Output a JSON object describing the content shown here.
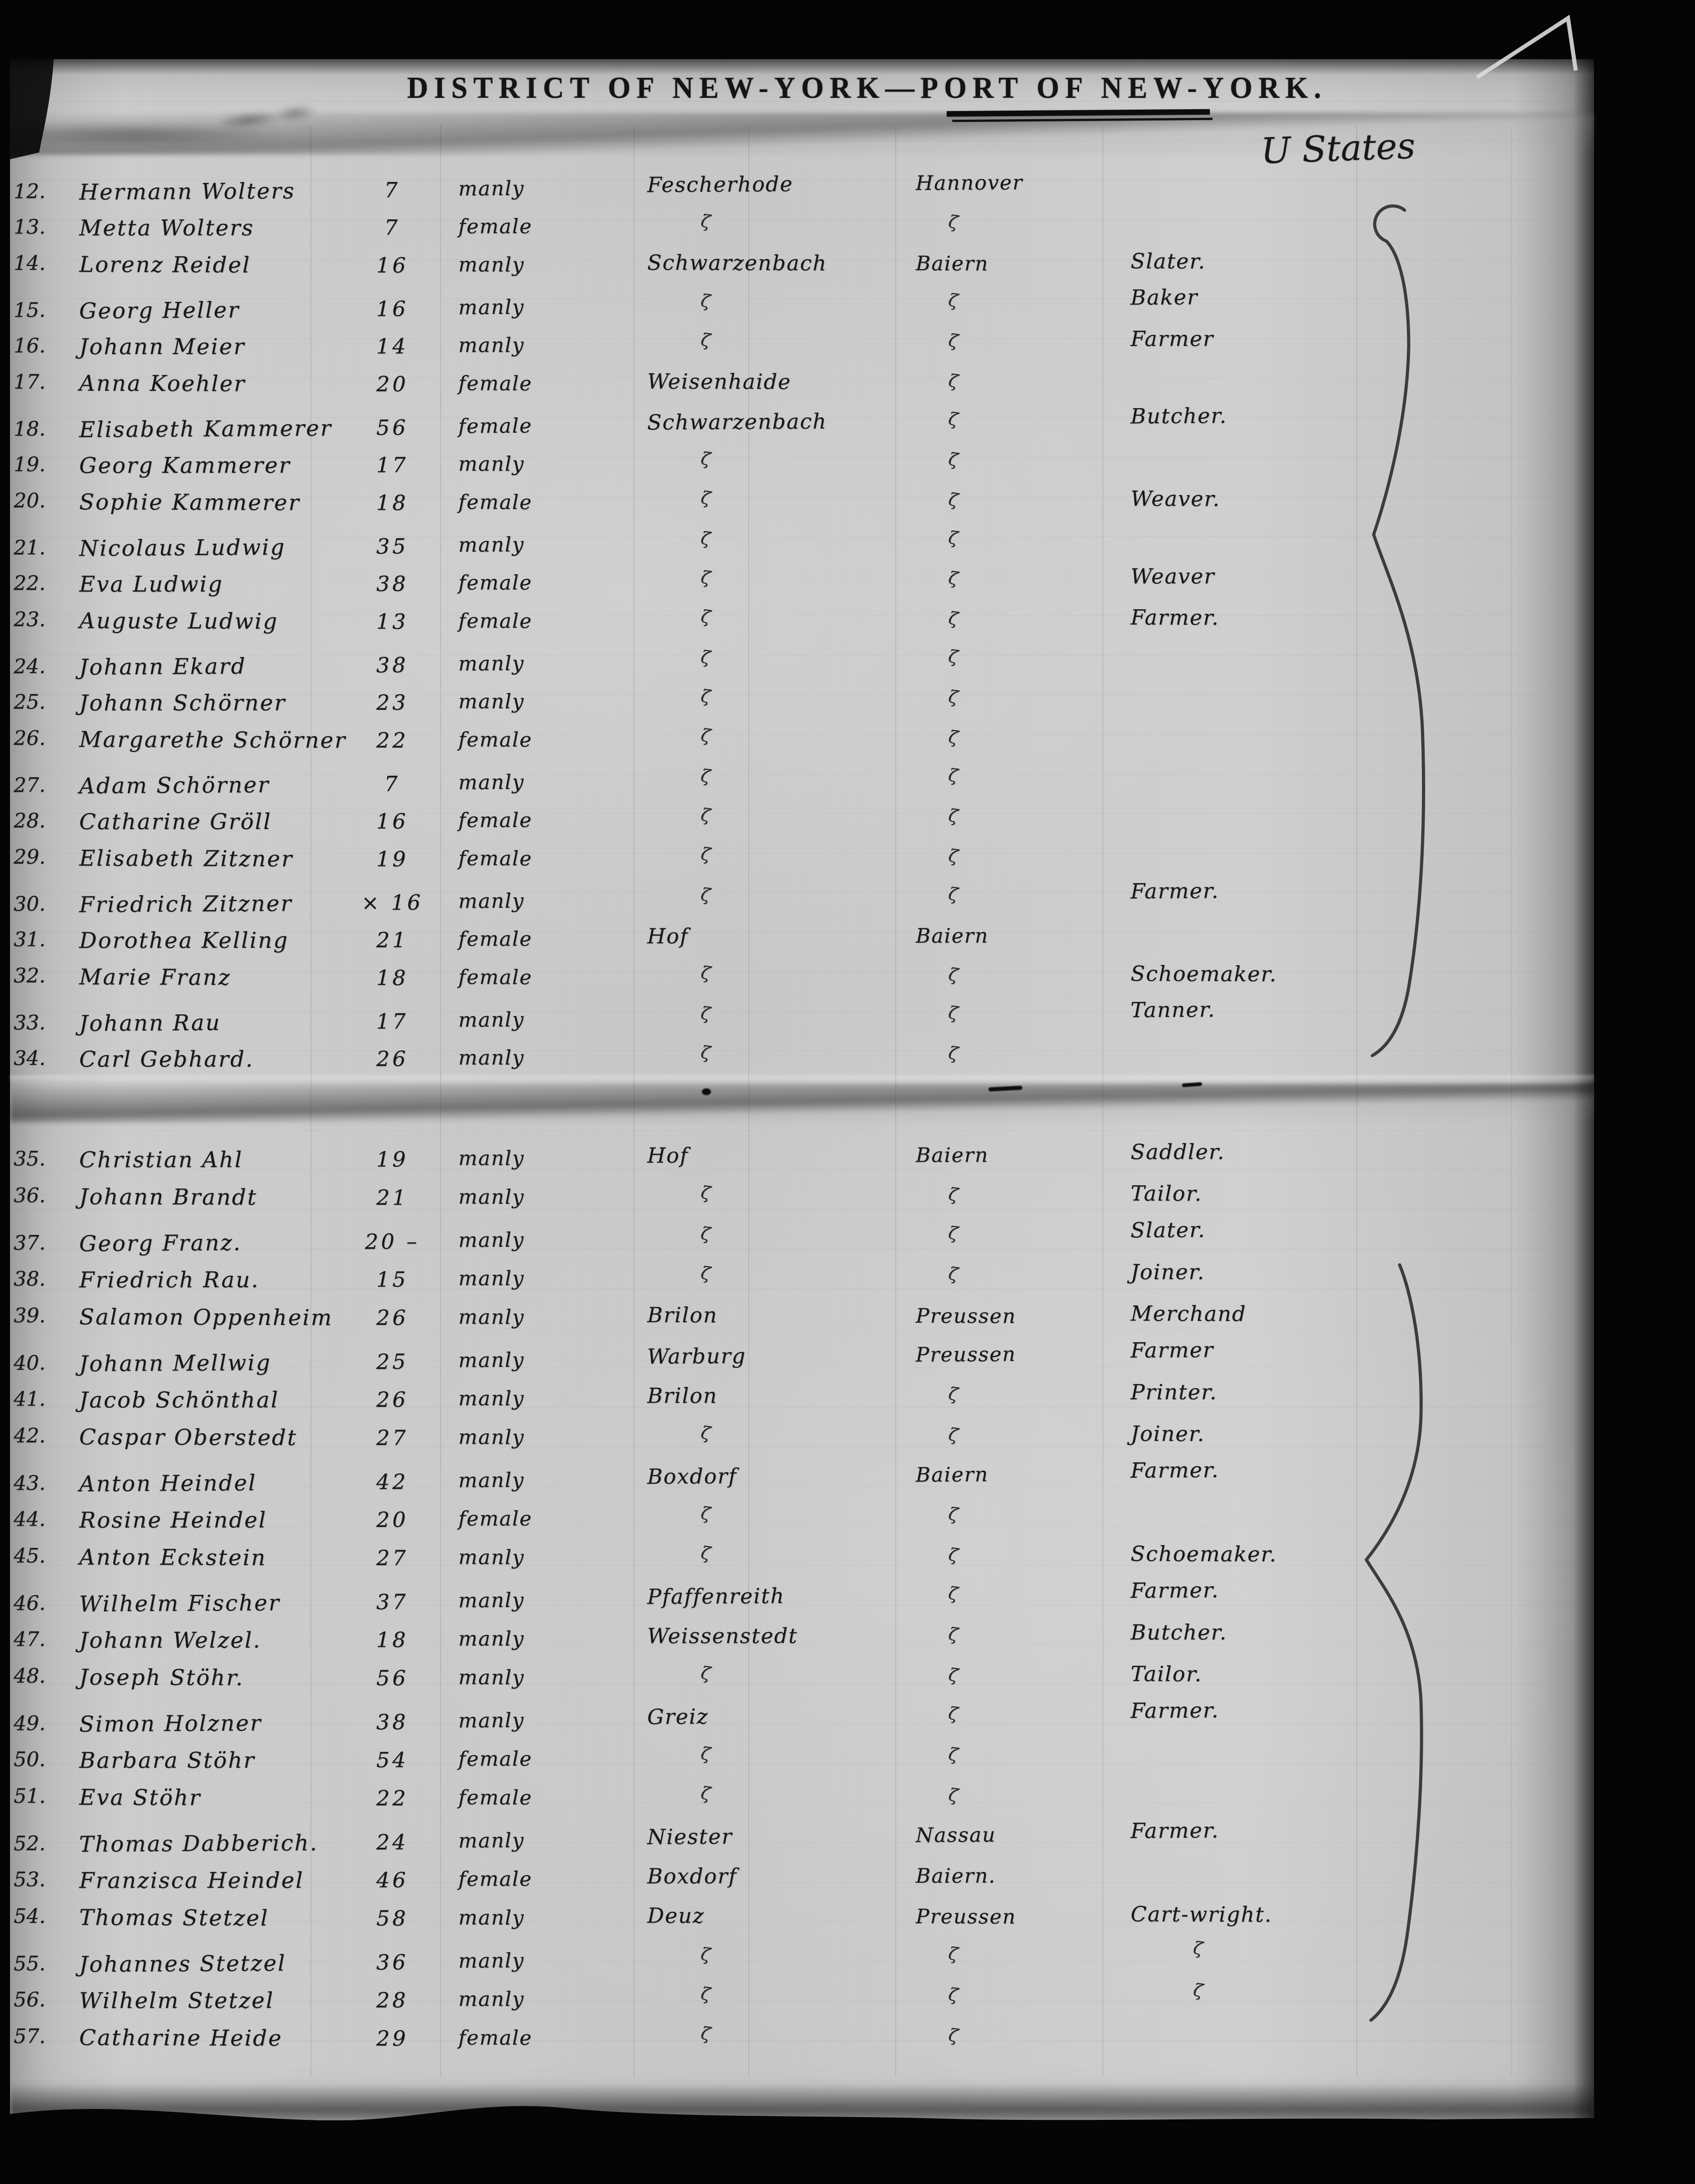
{
  "header": {
    "title": "DISTRICT OF NEW-YORK—PORT OF NEW-YORK.",
    "annotation": "U States"
  },
  "table": {
    "ditto_mark": "ζ",
    "sections": [
      {
        "rows": [
          {
            "no": "12.",
            "name": "Hermann Wolters",
            "age": "7",
            "sex": "manly",
            "place": "Fescherhode",
            "origin": "Hannover",
            "occupation": ""
          },
          {
            "no": "13.",
            "name": "Metta Wolters",
            "age": "7",
            "sex": "female",
            "place": "ζ",
            "origin": "ζ",
            "occupation": ""
          },
          {
            "no": "14.",
            "name": "Lorenz Reidel",
            "age": "16",
            "sex": "manly",
            "place": "Schwarzenbach",
            "origin": "Baiern",
            "occupation": "Slater."
          },
          {
            "no": "15.",
            "name": "Georg Heller",
            "age": "16",
            "sex": "manly",
            "place": "ζ",
            "origin": "ζ",
            "occupation": "Baker"
          },
          {
            "no": "16.",
            "name": "Johann Meier",
            "age": "14",
            "sex": "manly",
            "place": "ζ",
            "origin": "ζ",
            "occupation": "Farmer"
          },
          {
            "no": "17.",
            "name": "Anna Koehler",
            "age": "20",
            "sex": "female",
            "place": "Weisenhaide",
            "origin": "ζ",
            "occupation": ""
          },
          {
            "no": "18.",
            "name": "Elisabeth Kammerer",
            "age": "56",
            "sex": "female",
            "place": "Schwarzenbach",
            "origin": "ζ",
            "occupation": "Butcher."
          },
          {
            "no": "19.",
            "name": "Georg Kammerer",
            "age": "17",
            "sex": "manly",
            "place": "ζ",
            "origin": "ζ",
            "occupation": ""
          },
          {
            "no": "20.",
            "name": "Sophie Kammerer",
            "age": "18",
            "sex": "female",
            "place": "ζ",
            "origin": "ζ",
            "occupation": "Weaver."
          },
          {
            "no": "21.",
            "name": "Nicolaus Ludwig",
            "age": "35",
            "sex": "manly",
            "place": "ζ",
            "origin": "ζ",
            "occupation": ""
          },
          {
            "no": "22.",
            "name": "Eva Ludwig",
            "age": "38",
            "sex": "female",
            "place": "ζ",
            "origin": "ζ",
            "occupation": "Weaver"
          },
          {
            "no": "23.",
            "name": "Auguste Ludwig",
            "age": "13",
            "sex": "female",
            "place": "ζ",
            "origin": "ζ",
            "occupation": "Farmer."
          },
          {
            "no": "24.",
            "name": "Johann Ekard",
            "age": "38",
            "sex": "manly",
            "place": "ζ",
            "origin": "ζ",
            "occupation": ""
          },
          {
            "no": "25.",
            "name": "Johann Schörner",
            "age": "23",
            "sex": "manly",
            "place": "ζ",
            "origin": "ζ",
            "occupation": ""
          },
          {
            "no": "26.",
            "name": "Margarethe Schörner",
            "age": "22",
            "sex": "female",
            "place": "ζ",
            "origin": "ζ",
            "occupation": ""
          },
          {
            "no": "27.",
            "name": "Adam Schörner",
            "age": "7",
            "sex": "manly",
            "place": "ζ",
            "origin": "ζ",
            "occupation": ""
          },
          {
            "no": "28.",
            "name": "Catharine Gröll",
            "age": "16",
            "sex": "female",
            "place": "ζ",
            "origin": "ζ",
            "occupation": ""
          },
          {
            "no": "29.",
            "name": "Elisabeth Zitzner",
            "age": "19",
            "sex": "female",
            "place": "ζ",
            "origin": "ζ",
            "occupation": ""
          },
          {
            "no": "30.",
            "name": "Friedrich Zitzner",
            "age": "× 16",
            "sex": "manly",
            "place": "ζ",
            "origin": "ζ",
            "occupation": "Farmer."
          },
          {
            "no": "31.",
            "name": "Dorothea Kelling",
            "age": "21",
            "sex": "female",
            "place": "Hof",
            "origin": "Baiern",
            "occupation": ""
          },
          {
            "no": "32.",
            "name": "Marie Franz",
            "age": "18",
            "sex": "female",
            "place": "ζ",
            "origin": "ζ",
            "occupation": "Schoemaker."
          },
          {
            "no": "33.",
            "name": "Johann Rau",
            "age": "17",
            "sex": "manly",
            "place": "ζ",
            "origin": "ζ",
            "occupation": "Tanner."
          },
          {
            "no": "34.",
            "name": "Carl Gebhard.",
            "age": "26",
            "sex": "manly",
            "place": "ζ",
            "origin": "ζ",
            "occupation": ""
          }
        ]
      },
      {
        "rows": [
          {
            "no": "35.",
            "name": "Christian Ahl",
            "age": "19",
            "sex": "manly",
            "place": "Hof",
            "origin": "Baiern",
            "occupation": "Saddler."
          },
          {
            "no": "36.",
            "name": "Johann Brandt",
            "age": "21",
            "sex": "manly",
            "place": "ζ",
            "origin": "ζ",
            "occupation": "Tailor."
          },
          {
            "no": "37.",
            "name": "Georg Franz.",
            "age": "20 –",
            "sex": "manly",
            "place": "ζ",
            "origin": "ζ",
            "occupation": "Slater."
          },
          {
            "no": "38.",
            "name": "Friedrich Rau.",
            "age": "15",
            "sex": "manly",
            "place": "ζ",
            "origin": "ζ",
            "occupation": "Joiner."
          },
          {
            "no": "39.",
            "name": "Salamon Oppenheim",
            "age": "26",
            "sex": "manly",
            "place": "Brilon",
            "origin": "Preussen",
            "occupation": "Merchand"
          },
          {
            "no": "40.",
            "name": "Johann Mellwig",
            "age": "25",
            "sex": "manly",
            "place": "Warburg",
            "origin": "Preussen",
            "occupation": "Farmer"
          },
          {
            "no": "41.",
            "name": "Jacob Schönthal",
            "age": "26",
            "sex": "manly",
            "place": "Brilon",
            "origin": "ζ",
            "occupation": "Printer."
          },
          {
            "no": "42.",
            "name": "Caspar Oberstedt",
            "age": "27",
            "sex": "manly",
            "place": "ζ",
            "origin": "ζ",
            "occupation": "Joiner."
          },
          {
            "no": "43.",
            "name": "Anton Heindel",
            "age": "42",
            "sex": "manly",
            "place": "Boxdorf",
            "origin": "Baiern",
            "occupation": "Farmer."
          },
          {
            "no": "44.",
            "name": "Rosine Heindel",
            "age": "20",
            "sex": "female",
            "place": "ζ",
            "origin": "ζ",
            "occupation": ""
          },
          {
            "no": "45.",
            "name": "Anton Eckstein",
            "age": "27",
            "sex": "manly",
            "place": "ζ",
            "origin": "ζ",
            "occupation": "Schoemaker."
          },
          {
            "no": "46.",
            "name": "Wilhelm Fischer",
            "age": "37",
            "sex": "manly",
            "place": "Pfaffenreith",
            "origin": "ζ",
            "occupation": "Farmer."
          },
          {
            "no": "47.",
            "name": "Johann Welzel.",
            "age": "18",
            "sex": "manly",
            "place": "Weissenstedt",
            "origin": "ζ",
            "occupation": "Butcher."
          },
          {
            "no": "48.",
            "name": "Joseph Stöhr.",
            "age": "56",
            "sex": "manly",
            "place": "ζ",
            "origin": "ζ",
            "occupation": "Tailor."
          },
          {
            "no": "49.",
            "name": "Simon Holzner",
            "age": "38",
            "sex": "manly",
            "place": "Greiz",
            "origin": "ζ",
            "occupation": "Farmer."
          },
          {
            "no": "50.",
            "name": "Barbara Stöhr",
            "age": "54",
            "sex": "female",
            "place": "ζ",
            "origin": "ζ",
            "occupation": ""
          },
          {
            "no": "51.",
            "name": "Eva Stöhr",
            "age": "22",
            "sex": "female",
            "place": "ζ",
            "origin": "ζ",
            "occupation": ""
          },
          {
            "no": "52.",
            "name": "Thomas Dabberich.",
            "age": "24",
            "sex": "manly",
            "place": "Niester",
            "origin": "Nassau",
            "occupation": "Farmer."
          },
          {
            "no": "53.",
            "name": "Franzisca Heindel",
            "age": "46",
            "sex": "female",
            "place": "Boxdorf",
            "origin": "Baiern.",
            "occupation": ""
          },
          {
            "no": "54.",
            "name": "Thomas Stetzel",
            "age": "58",
            "sex": "manly",
            "place": "Deuz",
            "origin": "Preussen",
            "occupation": "Cart-wright."
          },
          {
            "no": "55.",
            "name": "Johannes Stetzel",
            "age": "36",
            "sex": "manly",
            "place": "ζ",
            "origin": "ζ",
            "occupation": "ζ"
          },
          {
            "no": "56.",
            "name": "Wilhelm Stetzel",
            "age": "28",
            "sex": "manly",
            "place": "ζ",
            "origin": "ζ",
            "occupation": "ζ"
          },
          {
            "no": "57.",
            "name": "Catharine Heide",
            "age": "29",
            "sex": "female",
            "place": "ζ",
            "origin": "ζ",
            "occupation": ""
          }
        ]
      }
    ]
  }
}
